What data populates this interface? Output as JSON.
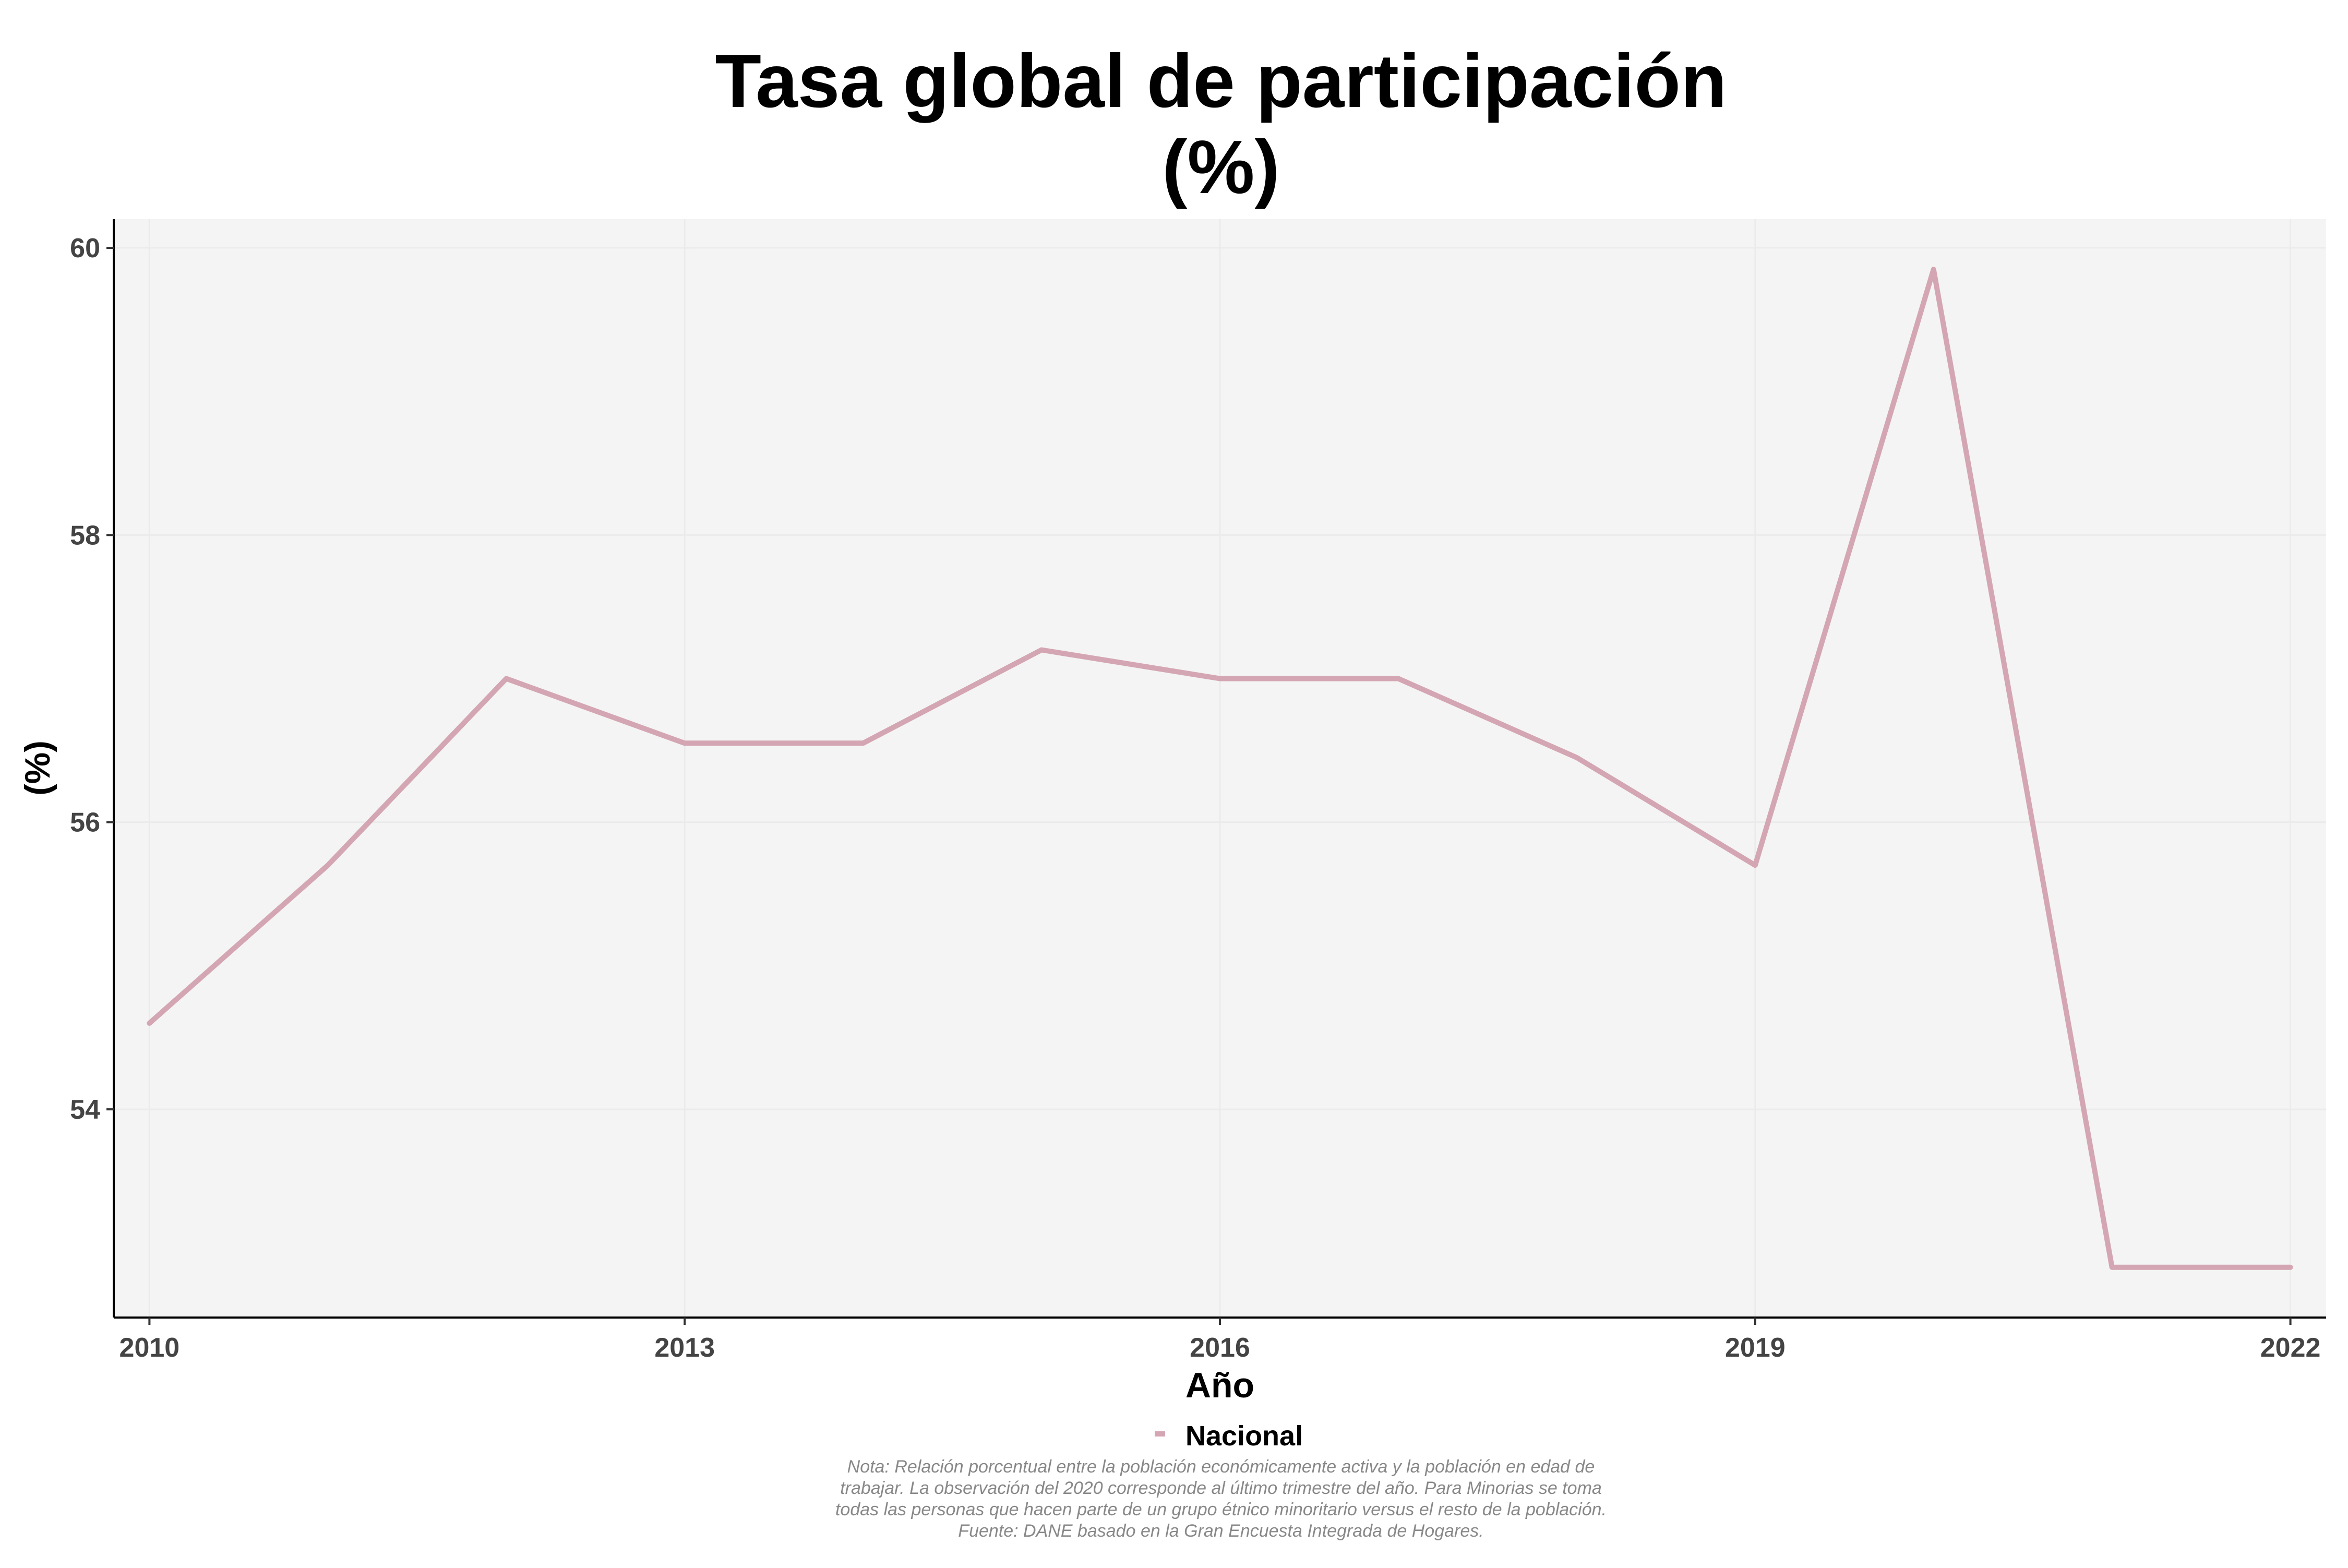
{
  "chart_data": {
    "type": "line",
    "title": "Tasa global de participación",
    "subtitle": "(%)",
    "xlabel": "Año",
    "ylabel": "(%)",
    "x": [
      2010,
      2011,
      2012,
      2013,
      2014,
      2015,
      2016,
      2017,
      2018,
      2019,
      2020,
      2021,
      2022
    ],
    "series": [
      {
        "name": "Nacional",
        "color": "#d4a5b2",
        "values": [
          54.6,
          55.7,
          57.0,
          56.55,
          56.55,
          57.2,
          57.0,
          57.0,
          56.45,
          55.7,
          59.85,
          52.9,
          52.9
        ]
      }
    ],
    "xlim": [
      2009.8,
      2022.2
    ],
    "ylim": [
      52.55,
      60.2
    ],
    "x_ticks": [
      2010,
      2013,
      2016,
      2019,
      2022
    ],
    "y_ticks": [
      54,
      56,
      58,
      60
    ],
    "x_tick_labels": [
      "2010",
      "2013",
      "2016",
      "2019",
      "2022"
    ],
    "y_tick_labels": [
      "54",
      "56",
      "58",
      "60"
    ],
    "grid": true,
    "legend": "bottom",
    "note_lines": [
      "Nota: Relación porcentual entre la población económicamente activa y la población en edad de",
      "trabajar. La observación del 2020 corresponde al último trimestre del año. Para Minorias se toma",
      "todas las personas que hacen parte de un grupo étnico minoritario versus el resto de la población.",
      "Fuente: DANE basado en la Gran Encuesta Integrada de Hogares."
    ],
    "colors": {
      "panel_background": "#f4f4f4",
      "grid": "#ebebeb",
      "axis": "#000000",
      "tick_text": "#444444",
      "note_text": "#888888"
    }
  }
}
